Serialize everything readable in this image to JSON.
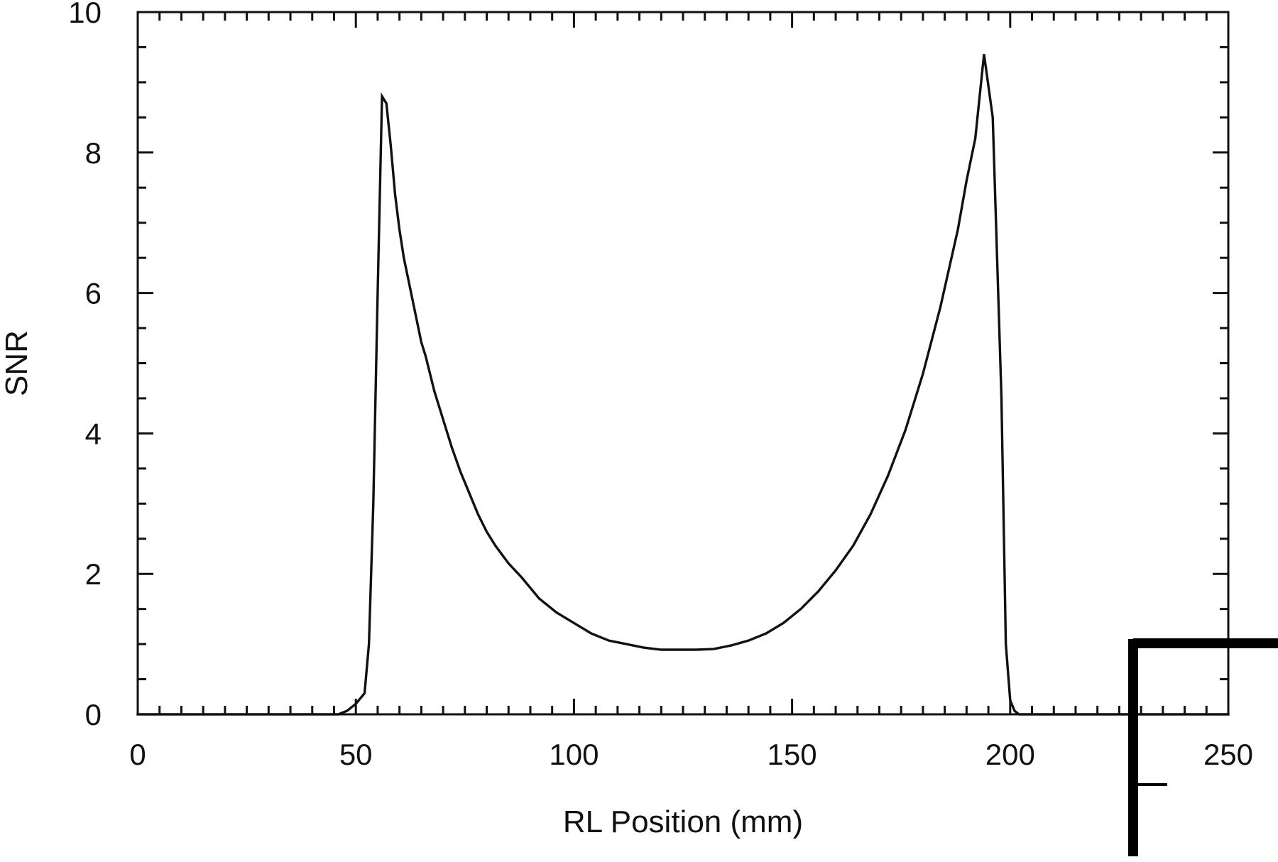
{
  "chart_data": {
    "type": "line",
    "title": "",
    "xlabel": "RL Position (mm)",
    "ylabel": "SNR",
    "xlim": [
      0,
      250
    ],
    "ylim": [
      0,
      10
    ],
    "x_ticks": [
      "0",
      "50",
      "100",
      "150",
      "200",
      "250"
    ],
    "y_ticks": [
      "0",
      "2",
      "4",
      "6",
      "8",
      "10"
    ],
    "grid": false,
    "legend": "none",
    "colors": {
      "line": "#111111",
      "axis": "#111111",
      "background": "#ffffff"
    },
    "series": [
      {
        "x": [
          0,
          46,
          48,
          50,
          52,
          53,
          54,
          55,
          56,
          57,
          58,
          59,
          60,
          61,
          62,
          63,
          64,
          65,
          66,
          68,
          70,
          72,
          74,
          76,
          78,
          80,
          82,
          85,
          88,
          92,
          96,
          100,
          104,
          108,
          112,
          116,
          120,
          124,
          128,
          132,
          136,
          140,
          144,
          148,
          152,
          156,
          160,
          164,
          168,
          172,
          176,
          180,
          184,
          188,
          190,
          192,
          194,
          196,
          198,
          199,
          200,
          201,
          202,
          203,
          204,
          205,
          206,
          208,
          250
        ],
        "y": [
          0,
          0,
          0.05,
          0.15,
          0.3,
          1.0,
          3.0,
          6.0,
          8.8,
          8.7,
          8.1,
          7.4,
          6.9,
          6.5,
          6.2,
          5.9,
          5.6,
          5.3,
          5.1,
          4.6,
          4.2,
          3.8,
          3.45,
          3.15,
          2.85,
          2.6,
          2.4,
          2.15,
          1.95,
          1.65,
          1.45,
          1.3,
          1.15,
          1.05,
          1.0,
          0.95,
          0.92,
          0.92,
          0.92,
          0.93,
          0.98,
          1.05,
          1.15,
          1.3,
          1.5,
          1.75,
          2.05,
          2.4,
          2.85,
          3.4,
          4.05,
          4.85,
          5.8,
          6.9,
          7.6,
          8.2,
          9.4,
          8.5,
          4.5,
          1.0,
          0.2,
          0.05,
          0,
          0,
          0,
          0,
          0,
          0,
          0
        ]
      }
    ]
  }
}
